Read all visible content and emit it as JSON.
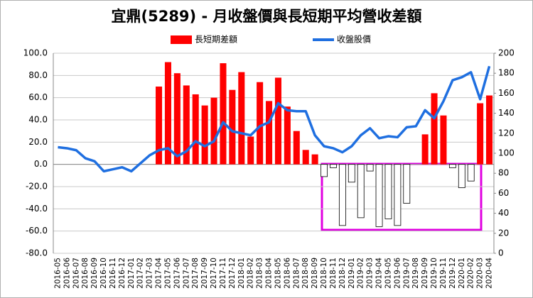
{
  "chart_data": {
    "type": "bar_line",
    "title": "宜鼎(5289)  - 月收盤價與長短期平均營收差額",
    "categories": [
      "2016-05",
      "2016-06",
      "2016-07",
      "2016-08",
      "2016-09",
      "2016-10",
      "2016-11",
      "2016-12",
      "2017-01",
      "2017-02",
      "2017-03",
      "2017-04",
      "2017-05",
      "2017-06",
      "2017-07",
      "2017-08",
      "2017-09",
      "2017-10",
      "2017-11",
      "2017-12",
      "2018-01",
      "2018-02",
      "2018-03",
      "2018-04",
      "2018-05",
      "2018-06",
      "2018-07",
      "2018-08",
      "2018-09",
      "2018-10",
      "2018-11",
      "2018-12",
      "2019-01",
      "2019-02",
      "2019-03",
      "2019-04",
      "2019-05",
      "2019-06",
      "2019-07",
      "2019-08",
      "2019-09",
      "2019-10",
      "2019-11",
      "2019-12",
      "2020-01",
      "2020-02",
      "2020-03",
      "2020-04"
    ],
    "series": [
      {
        "name": "長短期差額",
        "type": "bar",
        "color": "#ff0000",
        "negative_color": "#ffffff",
        "values": [
          0,
          0,
          0,
          0,
          0,
          0,
          0,
          0,
          0,
          0,
          0,
          70,
          92,
          82,
          71,
          63,
          53,
          60,
          91,
          67,
          83,
          25,
          74,
          57,
          78,
          52,
          30,
          13,
          9,
          -11,
          -3,
          -55,
          -16,
          -48,
          -6,
          -56,
          -49,
          -55,
          -35,
          0,
          27,
          64,
          44,
          -3,
          -21,
          -15,
          55,
          62
        ]
      },
      {
        "name": "收盤股價",
        "type": "line",
        "axis": "y2",
        "color": "#1f6fe0",
        "values": [
          106,
          105,
          103,
          95,
          92,
          82,
          84,
          86,
          82,
          90,
          98,
          103,
          105,
          97,
          102,
          112,
          107,
          112,
          131,
          122,
          120,
          118,
          127,
          131,
          150,
          143,
          142,
          142,
          118,
          107,
          105,
          101,
          107,
          118,
          125,
          115,
          117,
          116,
          126,
          127,
          143,
          135,
          152,
          173,
          176,
          181,
          154,
          187
        ]
      }
    ],
    "ylim": [
      -80,
      100
    ],
    "yticks": [
      {
        "value": 100,
        "label": "100.0"
      },
      {
        "value": 80,
        "label": "80.0"
      },
      {
        "value": 60,
        "label": "60.0"
      },
      {
        "value": 40,
        "label": "40.0"
      },
      {
        "value": 20,
        "label": "20.0"
      },
      {
        "value": 0,
        "label": "0.0"
      },
      {
        "value": -20,
        "label": "-20.0"
      },
      {
        "value": -40,
        "label": "-40.0"
      },
      {
        "value": -60,
        "label": "-60.0"
      },
      {
        "value": -80,
        "label": "-80.0"
      }
    ],
    "y2lim": [
      0,
      200
    ],
    "y2ticks": [
      0,
      20,
      40,
      60,
      80,
      100,
      120,
      140,
      160,
      180,
      200
    ],
    "grid": true
  }
}
